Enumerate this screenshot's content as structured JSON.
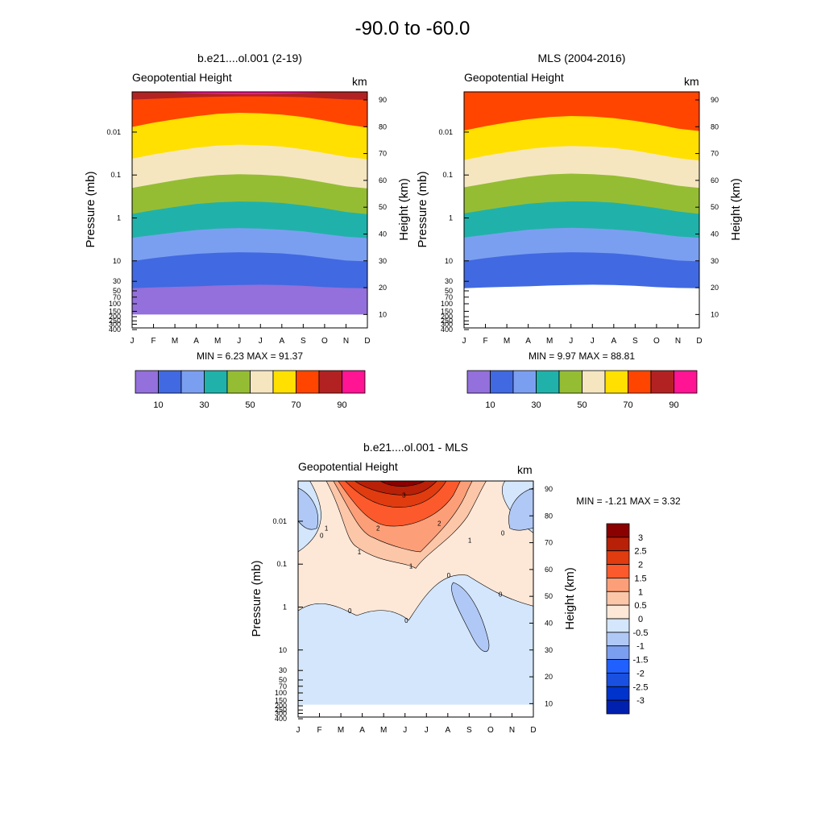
{
  "page_title": "-90.0 to -60.0",
  "panels": [
    {
      "title": "b.e21....ol.001 (2-19)",
      "subtitle": "Geopotential Height",
      "unit": "km",
      "left_axis_label": "Pressure (mb)",
      "right_axis_label": "Height (km)",
      "minmax_text": "MIN =   6.23  MAX =  91.37"
    },
    {
      "title": "MLS (2004-2016)",
      "subtitle": "Geopotential Height",
      "unit": "km",
      "left_axis_label": "Pressure (mb)",
      "right_axis_label": "Height (km)",
      "minmax_text": "MIN =   9.97  MAX =  88.81"
    },
    {
      "title": "b.e21....ol.001 - MLS",
      "subtitle": "Geopotential Height",
      "unit": "km",
      "left_axis_label": "Pressure (mb)",
      "right_axis_label": "Height (km)",
      "minmax_text": "MIN =  -1.21  MAX =   3.32"
    }
  ],
  "chart_data": [
    {
      "type": "heatmap",
      "title": "b.e21....ol.001 (2-19)",
      "x_categories": [
        "J",
        "F",
        "M",
        "A",
        "M",
        "J",
        "J",
        "A",
        "S",
        "O",
        "N",
        "D"
      ],
      "pressure_ticks": [
        "0.01",
        "0.1",
        "1",
        "10",
        "30",
        "50",
        "70",
        "100",
        "150",
        "200",
        "250",
        "300",
        "400"
      ],
      "height_ticks": [
        "10",
        "20",
        "30",
        "40",
        "50",
        "60",
        "70",
        "80",
        "90"
      ],
      "ylabel_left": "Pressure (mb)",
      "ylabel_right": "Height (km)",
      "levels_km": [
        10,
        20,
        30,
        40,
        50,
        60,
        70,
        80,
        90
      ],
      "colors": [
        "#9370db",
        "#4169e1",
        "#7b9ff0",
        "#20b2aa",
        "#95bd34",
        "#f5e6c0",
        "#ffe000",
        "#ff4500",
        "#b22222",
        "#ff1493"
      ],
      "colorbar_labels": [
        "10",
        "30",
        "50",
        "70",
        "90"
      ],
      "min": 6.23,
      "max": 91.37,
      "boundaries_km": [
        [
          10,
          19.8,
          29.9,
          38.6,
          47.5,
          57.2,
          68.1,
          79.9,
          90.1
        ],
        [
          10,
          20.1,
          31.0,
          39.6,
          48.9,
          58.6,
          69.7,
          81.5,
          90.4
        ],
        [
          10,
          20.3,
          31.9,
          40.6,
          50.1,
          60.0,
          71.0,
          82.8,
          90.7
        ],
        [
          10,
          20.5,
          32.6,
          41.5,
          51.2,
          61.2,
          72.2,
          83.9,
          91.0
        ],
        [
          10,
          20.8,
          33.0,
          42.0,
          51.8,
          62.0,
          73.0,
          84.8,
          91.2
        ],
        [
          10,
          21.0,
          33.2,
          42.2,
          52.1,
          62.3,
          73.3,
          85.2,
          91.3
        ],
        [
          10,
          21.1,
          33.1,
          42.0,
          52.0,
          62.1,
          73.1,
          85.0,
          91.3
        ],
        [
          10,
          21.0,
          32.8,
          41.6,
          51.6,
          61.6,
          72.6,
          84.5,
          91.2
        ],
        [
          10,
          20.7,
          32.1,
          41.0,
          50.7,
          60.6,
          71.6,
          83.6,
          91.0
        ],
        [
          10,
          20.2,
          31.1,
          40.0,
          49.6,
          59.2,
          70.2,
          82.3,
          90.6
        ],
        [
          10,
          19.9,
          30.1,
          39.0,
          48.2,
          57.8,
          68.8,
          80.8,
          90.2
        ],
        [
          10,
          19.8,
          29.8,
          38.5,
          47.4,
          57.0,
          67.9,
          79.7,
          90.0
        ]
      ]
    },
    {
      "type": "heatmap",
      "title": "MLS (2004-2016)",
      "x_categories": [
        "J",
        "F",
        "M",
        "A",
        "M",
        "J",
        "J",
        "A",
        "S",
        "O",
        "N",
        "D"
      ],
      "pressure_ticks": [
        "0.01",
        "0.1",
        "1",
        "10",
        "30",
        "50",
        "70",
        "100",
        "150",
        "200",
        "250",
        "300",
        "400"
      ],
      "height_ticks": [
        "10",
        "20",
        "30",
        "40",
        "50",
        "60",
        "70",
        "80",
        "90"
      ],
      "ylabel_left": "Pressure (mb)",
      "ylabel_right": "Height (km)",
      "levels_km": [
        10,
        20,
        30,
        40,
        50,
        60,
        70,
        80,
        90
      ],
      "colors": [
        "#9370db",
        "#4169e1",
        "#7b9ff0",
        "#20b2aa",
        "#95bd34",
        "#f5e6c0",
        "#ffe000",
        "#ff4500",
        "#b22222",
        "#ff1493"
      ],
      "colorbar_labels": [
        "10",
        "30",
        "50",
        "70",
        "90"
      ],
      "min": 9.97,
      "max": 88.81,
      "boundaries_km": [
        [
          null,
          19.8,
          29.9,
          38.7,
          47.7,
          57.4,
          67.6,
          78.6
        ],
        [
          null,
          20.1,
          31.0,
          39.7,
          49.0,
          58.8,
          69.2,
          80.2
        ],
        [
          null,
          20.3,
          31.9,
          40.7,
          50.2,
          60.2,
          70.5,
          81.6
        ],
        [
          null,
          20.5,
          32.6,
          41.6,
          51.3,
          61.4,
          71.7,
          82.8
        ],
        [
          null,
          20.8,
          33.0,
          42.1,
          51.9,
          62.2,
          72.5,
          83.6
        ],
        [
          null,
          21.0,
          33.2,
          42.3,
          52.2,
          62.5,
          72.8,
          84.0
        ],
        [
          null,
          21.1,
          33.1,
          42.1,
          52.1,
          62.3,
          72.6,
          83.8
        ],
        [
          null,
          21.0,
          32.8,
          41.7,
          51.7,
          61.8,
          72.1,
          83.2
        ],
        [
          null,
          20.7,
          32.1,
          41.1,
          50.8,
          60.8,
          71.1,
          82.2
        ],
        [
          null,
          20.2,
          31.1,
          40.1,
          49.7,
          59.4,
          69.7,
          80.9
        ],
        [
          null,
          19.9,
          30.1,
          39.1,
          48.4,
          58.0,
          68.3,
          79.3
        ],
        [
          null,
          19.8,
          29.8,
          38.6,
          47.5,
          57.2,
          67.4,
          78.4
        ]
      ]
    },
    {
      "type": "heatmap",
      "title": "b.e21....ol.001 - MLS",
      "x_categories": [
        "J",
        "F",
        "M",
        "A",
        "M",
        "J",
        "J",
        "A",
        "S",
        "O",
        "N",
        "D"
      ],
      "pressure_ticks": [
        "0.01",
        "0.1",
        "1",
        "10",
        "30",
        "50",
        "70",
        "100",
        "150",
        "200",
        "250",
        "300",
        "400"
      ],
      "height_ticks": [
        "10",
        "20",
        "30",
        "40",
        "50",
        "60",
        "70",
        "80",
        "90"
      ],
      "ylabel_left": "Pressure (mb)",
      "ylabel_right": "Height (km)",
      "levels_km": [
        -3,
        -2.5,
        -2,
        -1.5,
        -1,
        -0.5,
        0,
        0.5,
        1,
        1.5,
        2,
        2.5,
        3
      ],
      "colors": [
        "#00008b",
        "#0020b0",
        "#0033cc",
        "#1a50e0",
        "#2060ff",
        "#7b9ef0",
        "#b0c8f5",
        "#d4e6fb",
        "#fde8d8",
        "#fcc6a8",
        "#fc9f78",
        "#fc5a2c",
        "#e03c10",
        "#b82008",
        "#8b0000"
      ],
      "colorbar_labels": [
        "3",
        "2.5",
        "2",
        "1.5",
        "1",
        "0.5",
        "0",
        "-0.5",
        "-1",
        "-1.5",
        "-2",
        "-2.5",
        "-3"
      ],
      "min": -1.21,
      "max": 3.32,
      "contour_labels": [
        "3",
        "2",
        "2",
        "1",
        "1",
        "1",
        "1",
        "0",
        "0",
        "0",
        "0",
        "0",
        "0"
      ]
    }
  ]
}
